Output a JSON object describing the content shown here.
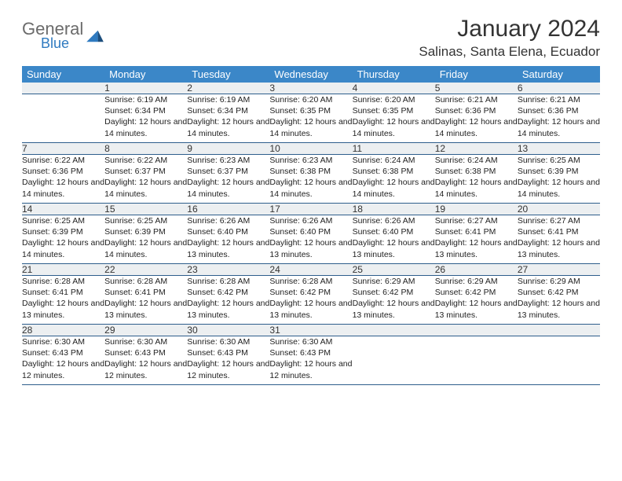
{
  "logo": {
    "text1": "General",
    "text2": "Blue",
    "gray": "#6b6b6b",
    "blue": "#2f7ac0"
  },
  "title": "January 2024",
  "location": "Salinas, Santa Elena, Ecuador",
  "colors": {
    "header_bg": "#3b87c8",
    "header_text": "#ffffff",
    "daynum_bg": "#eceff1",
    "row_border": "#2e5e8c",
    "body_text": "#222222",
    "page_bg": "#ffffff"
  },
  "weekdays": [
    "Sunday",
    "Monday",
    "Tuesday",
    "Wednesday",
    "Thursday",
    "Friday",
    "Saturday"
  ],
  "start_offset": 1,
  "days": [
    {
      "n": 1,
      "sr": "6:19 AM",
      "ss": "6:34 PM",
      "dl": "12 hours and 14 minutes."
    },
    {
      "n": 2,
      "sr": "6:19 AM",
      "ss": "6:34 PM",
      "dl": "12 hours and 14 minutes."
    },
    {
      "n": 3,
      "sr": "6:20 AM",
      "ss": "6:35 PM",
      "dl": "12 hours and 14 minutes."
    },
    {
      "n": 4,
      "sr": "6:20 AM",
      "ss": "6:35 PM",
      "dl": "12 hours and 14 minutes."
    },
    {
      "n": 5,
      "sr": "6:21 AM",
      "ss": "6:36 PM",
      "dl": "12 hours and 14 minutes."
    },
    {
      "n": 6,
      "sr": "6:21 AM",
      "ss": "6:36 PM",
      "dl": "12 hours and 14 minutes."
    },
    {
      "n": 7,
      "sr": "6:22 AM",
      "ss": "6:36 PM",
      "dl": "12 hours and 14 minutes."
    },
    {
      "n": 8,
      "sr": "6:22 AM",
      "ss": "6:37 PM",
      "dl": "12 hours and 14 minutes."
    },
    {
      "n": 9,
      "sr": "6:23 AM",
      "ss": "6:37 PM",
      "dl": "12 hours and 14 minutes."
    },
    {
      "n": 10,
      "sr": "6:23 AM",
      "ss": "6:38 PM",
      "dl": "12 hours and 14 minutes."
    },
    {
      "n": 11,
      "sr": "6:24 AM",
      "ss": "6:38 PM",
      "dl": "12 hours and 14 minutes."
    },
    {
      "n": 12,
      "sr": "6:24 AM",
      "ss": "6:38 PM",
      "dl": "12 hours and 14 minutes."
    },
    {
      "n": 13,
      "sr": "6:25 AM",
      "ss": "6:39 PM",
      "dl": "12 hours and 14 minutes."
    },
    {
      "n": 14,
      "sr": "6:25 AM",
      "ss": "6:39 PM",
      "dl": "12 hours and 14 minutes."
    },
    {
      "n": 15,
      "sr": "6:25 AM",
      "ss": "6:39 PM",
      "dl": "12 hours and 14 minutes."
    },
    {
      "n": 16,
      "sr": "6:26 AM",
      "ss": "6:40 PM",
      "dl": "12 hours and 13 minutes."
    },
    {
      "n": 17,
      "sr": "6:26 AM",
      "ss": "6:40 PM",
      "dl": "12 hours and 13 minutes."
    },
    {
      "n": 18,
      "sr": "6:26 AM",
      "ss": "6:40 PM",
      "dl": "12 hours and 13 minutes."
    },
    {
      "n": 19,
      "sr": "6:27 AM",
      "ss": "6:41 PM",
      "dl": "12 hours and 13 minutes."
    },
    {
      "n": 20,
      "sr": "6:27 AM",
      "ss": "6:41 PM",
      "dl": "12 hours and 13 minutes."
    },
    {
      "n": 21,
      "sr": "6:28 AM",
      "ss": "6:41 PM",
      "dl": "12 hours and 13 minutes."
    },
    {
      "n": 22,
      "sr": "6:28 AM",
      "ss": "6:41 PM",
      "dl": "12 hours and 13 minutes."
    },
    {
      "n": 23,
      "sr": "6:28 AM",
      "ss": "6:42 PM",
      "dl": "12 hours and 13 minutes."
    },
    {
      "n": 24,
      "sr": "6:28 AM",
      "ss": "6:42 PM",
      "dl": "12 hours and 13 minutes."
    },
    {
      "n": 25,
      "sr": "6:29 AM",
      "ss": "6:42 PM",
      "dl": "12 hours and 13 minutes."
    },
    {
      "n": 26,
      "sr": "6:29 AM",
      "ss": "6:42 PM",
      "dl": "12 hours and 13 minutes."
    },
    {
      "n": 27,
      "sr": "6:29 AM",
      "ss": "6:42 PM",
      "dl": "12 hours and 13 minutes."
    },
    {
      "n": 28,
      "sr": "6:30 AM",
      "ss": "6:43 PM",
      "dl": "12 hours and 12 minutes."
    },
    {
      "n": 29,
      "sr": "6:30 AM",
      "ss": "6:43 PM",
      "dl": "12 hours and 12 minutes."
    },
    {
      "n": 30,
      "sr": "6:30 AM",
      "ss": "6:43 PM",
      "dl": "12 hours and 12 minutes."
    },
    {
      "n": 31,
      "sr": "6:30 AM",
      "ss": "6:43 PM",
      "dl": "12 hours and 12 minutes."
    }
  ],
  "labels": {
    "sunrise": "Sunrise:",
    "sunset": "Sunset:",
    "daylight": "Daylight:"
  }
}
